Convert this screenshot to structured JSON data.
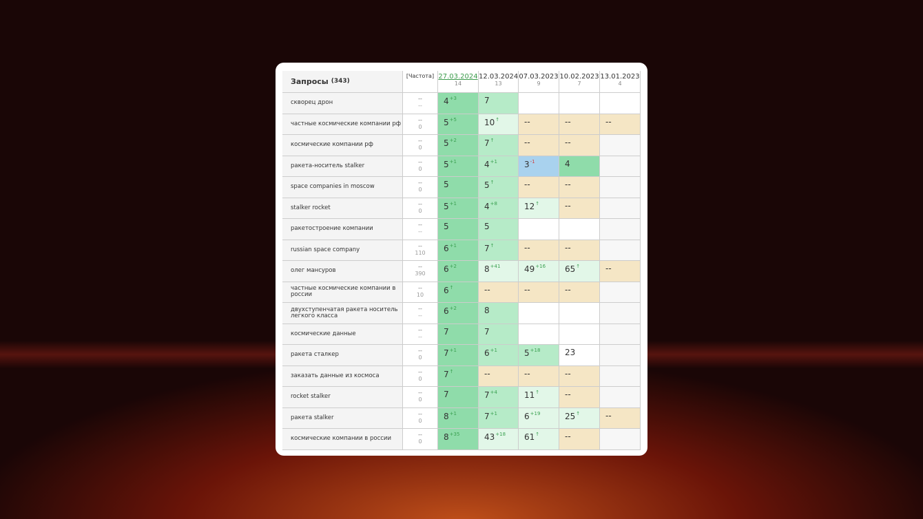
{
  "header": {
    "title": "Запросы",
    "count": "(343)",
    "freq": "[Частота]",
    "dates": [
      {
        "date": "27.03.2024",
        "n": "14"
      },
      {
        "date": "12.03.2024",
        "n": "13"
      },
      {
        "date": "07.03.2023",
        "n": "9"
      },
      {
        "date": "10.02.2023",
        "n": "7"
      },
      {
        "date": "13.01.2023",
        "n": "4"
      }
    ]
  },
  "rows": [
    {
      "q": "скворец дрон",
      "f": [
        "--",
        "--"
      ],
      "cells": [
        {
          "v": "4",
          "d": "+3",
          "s": "top"
        },
        {
          "v": "7",
          "s": "up"
        },
        {
          "s": "none"
        },
        {
          "s": "none"
        },
        {
          "s": "none"
        }
      ]
    },
    {
      "q": "частные космические компании рф",
      "f": [
        "--",
        "0"
      ],
      "cells": [
        {
          "v": "5",
          "d": "+5",
          "s": "top"
        },
        {
          "v": "10",
          "d": "↑",
          "s": "pale"
        },
        {
          "v": "--",
          "s": "lost"
        },
        {
          "v": "--",
          "s": "lost"
        },
        {
          "v": "--",
          "s": "lost"
        }
      ]
    },
    {
      "q": "космические компании рф",
      "f": [
        "--",
        "0"
      ],
      "cells": [
        {
          "v": "5",
          "d": "+2",
          "s": "top"
        },
        {
          "v": "7",
          "d": "↑",
          "s": "up"
        },
        {
          "v": "--",
          "s": "lost"
        },
        {
          "v": "--",
          "s": "lost"
        },
        {
          "s": "empty"
        }
      ]
    },
    {
      "q": "ракета-носитель stalker",
      "f": [
        "--",
        "0"
      ],
      "cells": [
        {
          "v": "5",
          "d": "+1",
          "s": "top"
        },
        {
          "v": "4",
          "d": "+1",
          "s": "up"
        },
        {
          "v": "3",
          "d": "-1",
          "s": "blue"
        },
        {
          "v": "4",
          "s": "top"
        },
        {
          "s": "empty"
        }
      ]
    },
    {
      "q": "space companies in moscow",
      "f": [
        "--",
        "0"
      ],
      "cells": [
        {
          "v": "5",
          "s": "top"
        },
        {
          "v": "5",
          "d": "↑",
          "s": "up"
        },
        {
          "v": "--",
          "s": "lost"
        },
        {
          "v": "--",
          "s": "lost"
        },
        {
          "s": "empty"
        }
      ]
    },
    {
      "q": "stalker rocket",
      "f": [
        "--",
        "0"
      ],
      "cells": [
        {
          "v": "5",
          "d": "+1",
          "s": "top"
        },
        {
          "v": "4",
          "d": "+8",
          "s": "up"
        },
        {
          "v": "12",
          "d": "↑",
          "s": "pale"
        },
        {
          "v": "--",
          "s": "lost"
        },
        {
          "s": "empty"
        }
      ]
    },
    {
      "q": "ракетостроение компании",
      "f": [
        "--",
        "--"
      ],
      "cells": [
        {
          "v": "5",
          "s": "top"
        },
        {
          "v": "5",
          "s": "up"
        },
        {
          "s": "none"
        },
        {
          "s": "none"
        },
        {
          "s": "empty"
        }
      ]
    },
    {
      "q": "russian space company",
      "f": [
        "--",
        "110"
      ],
      "cells": [
        {
          "v": "6",
          "d": "+1",
          "s": "top"
        },
        {
          "v": "7",
          "d": "↑",
          "s": "up"
        },
        {
          "v": "--",
          "s": "lost"
        },
        {
          "v": "--",
          "s": "lost"
        },
        {
          "s": "empty"
        }
      ]
    },
    {
      "q": "олег мансуров",
      "f": [
        "--",
        "390"
      ],
      "cells": [
        {
          "v": "6",
          "d": "+2",
          "s": "top"
        },
        {
          "v": "8",
          "d": "+41",
          "s": "pale"
        },
        {
          "v": "49",
          "d": "+16",
          "s": "pale"
        },
        {
          "v": "65",
          "d": "↑",
          "s": "pale"
        },
        {
          "v": "--",
          "s": "lost"
        }
      ]
    },
    {
      "q": "частные космические компании в россии",
      "f": [
        "--",
        "10"
      ],
      "cells": [
        {
          "v": "6",
          "d": "↑",
          "s": "top"
        },
        {
          "v": "--",
          "s": "lost"
        },
        {
          "v": "--",
          "s": "lost"
        },
        {
          "v": "--",
          "s": "lost"
        },
        {
          "s": "empty"
        }
      ]
    },
    {
      "q": "двухступенчатая ракета носитель легкого класса",
      "f": [
        "--",
        "--"
      ],
      "cells": [
        {
          "v": "6",
          "d": "+2",
          "s": "top"
        },
        {
          "v": "8",
          "s": "up"
        },
        {
          "s": "none"
        },
        {
          "s": "none"
        },
        {
          "s": "empty"
        }
      ]
    },
    {
      "q": "космические данные",
      "f": [
        "--",
        "--"
      ],
      "cells": [
        {
          "v": "7",
          "s": "top"
        },
        {
          "v": "7",
          "s": "up"
        },
        {
          "s": "none"
        },
        {
          "s": "none"
        },
        {
          "s": "empty"
        }
      ]
    },
    {
      "q": "ракета сталкер",
      "f": [
        "--",
        "0"
      ],
      "cells": [
        {
          "v": "7",
          "d": "+1",
          "s": "top"
        },
        {
          "v": "6",
          "d": "+1",
          "s": "up"
        },
        {
          "v": "5",
          "d": "+18",
          "s": "up"
        },
        {
          "v": "23",
          "s": "none"
        },
        {
          "s": "empty"
        }
      ]
    },
    {
      "q": "заказать данные из космоса",
      "f": [
        "--",
        "0"
      ],
      "cells": [
        {
          "v": "7",
          "d": "↑",
          "s": "top"
        },
        {
          "v": "--",
          "s": "lost"
        },
        {
          "v": "--",
          "s": "lost"
        },
        {
          "v": "--",
          "s": "lost"
        },
        {
          "s": "empty"
        }
      ]
    },
    {
      "q": "rocket stalker",
      "f": [
        "--",
        "0"
      ],
      "cells": [
        {
          "v": "7",
          "s": "top"
        },
        {
          "v": "7",
          "d": "+4",
          "s": "up"
        },
        {
          "v": "11",
          "d": "↑",
          "s": "pale"
        },
        {
          "v": "--",
          "s": "lost"
        },
        {
          "s": "empty"
        }
      ]
    },
    {
      "q": "ракета stalker",
      "f": [
        "--",
        "0"
      ],
      "cells": [
        {
          "v": "8",
          "d": "+1",
          "s": "top"
        },
        {
          "v": "7",
          "d": "+1",
          "s": "up"
        },
        {
          "v": "6",
          "d": "+19",
          "s": "pale"
        },
        {
          "v": "25",
          "d": "↑",
          "s": "pale"
        },
        {
          "v": "--",
          "s": "lost"
        }
      ]
    },
    {
      "q": "космические компании в россии",
      "f": [
        "--",
        "0"
      ],
      "cells": [
        {
          "v": "8",
          "d": "+35",
          "s": "top"
        },
        {
          "v": "43",
          "d": "+18",
          "s": "pale"
        },
        {
          "v": "61",
          "d": "↑",
          "s": "pale"
        },
        {
          "v": "--",
          "s": "lost"
        },
        {
          "s": "empty"
        }
      ]
    }
  ]
}
